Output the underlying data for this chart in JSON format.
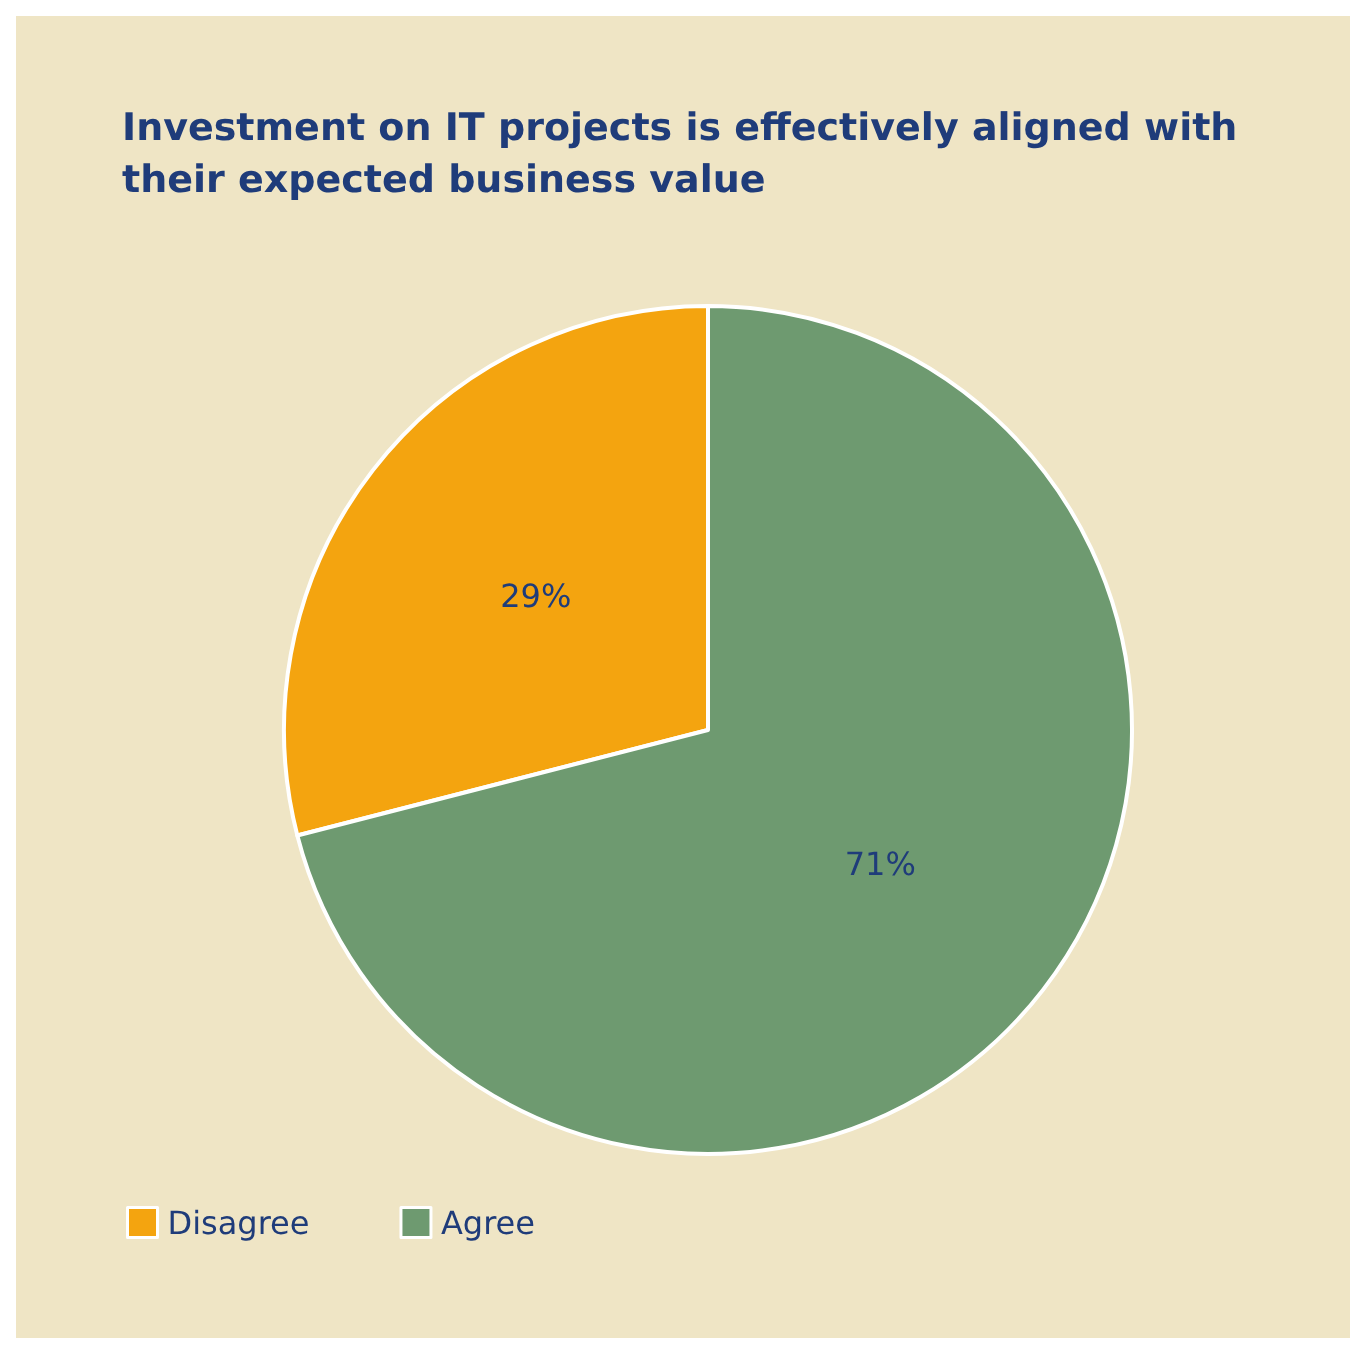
{
  "chart_data": {
    "type": "pie",
    "title": "Investment on IT projects is effectively aligned with their expected business value",
    "categories": [
      "Disagree",
      "Agree"
    ],
    "values": [
      29,
      71
    ],
    "colors": [
      "#f4a40f",
      "#6e9a70"
    ],
    "value_labels": [
      "29%",
      "71%"
    ],
    "legend": "bottom left"
  }
}
